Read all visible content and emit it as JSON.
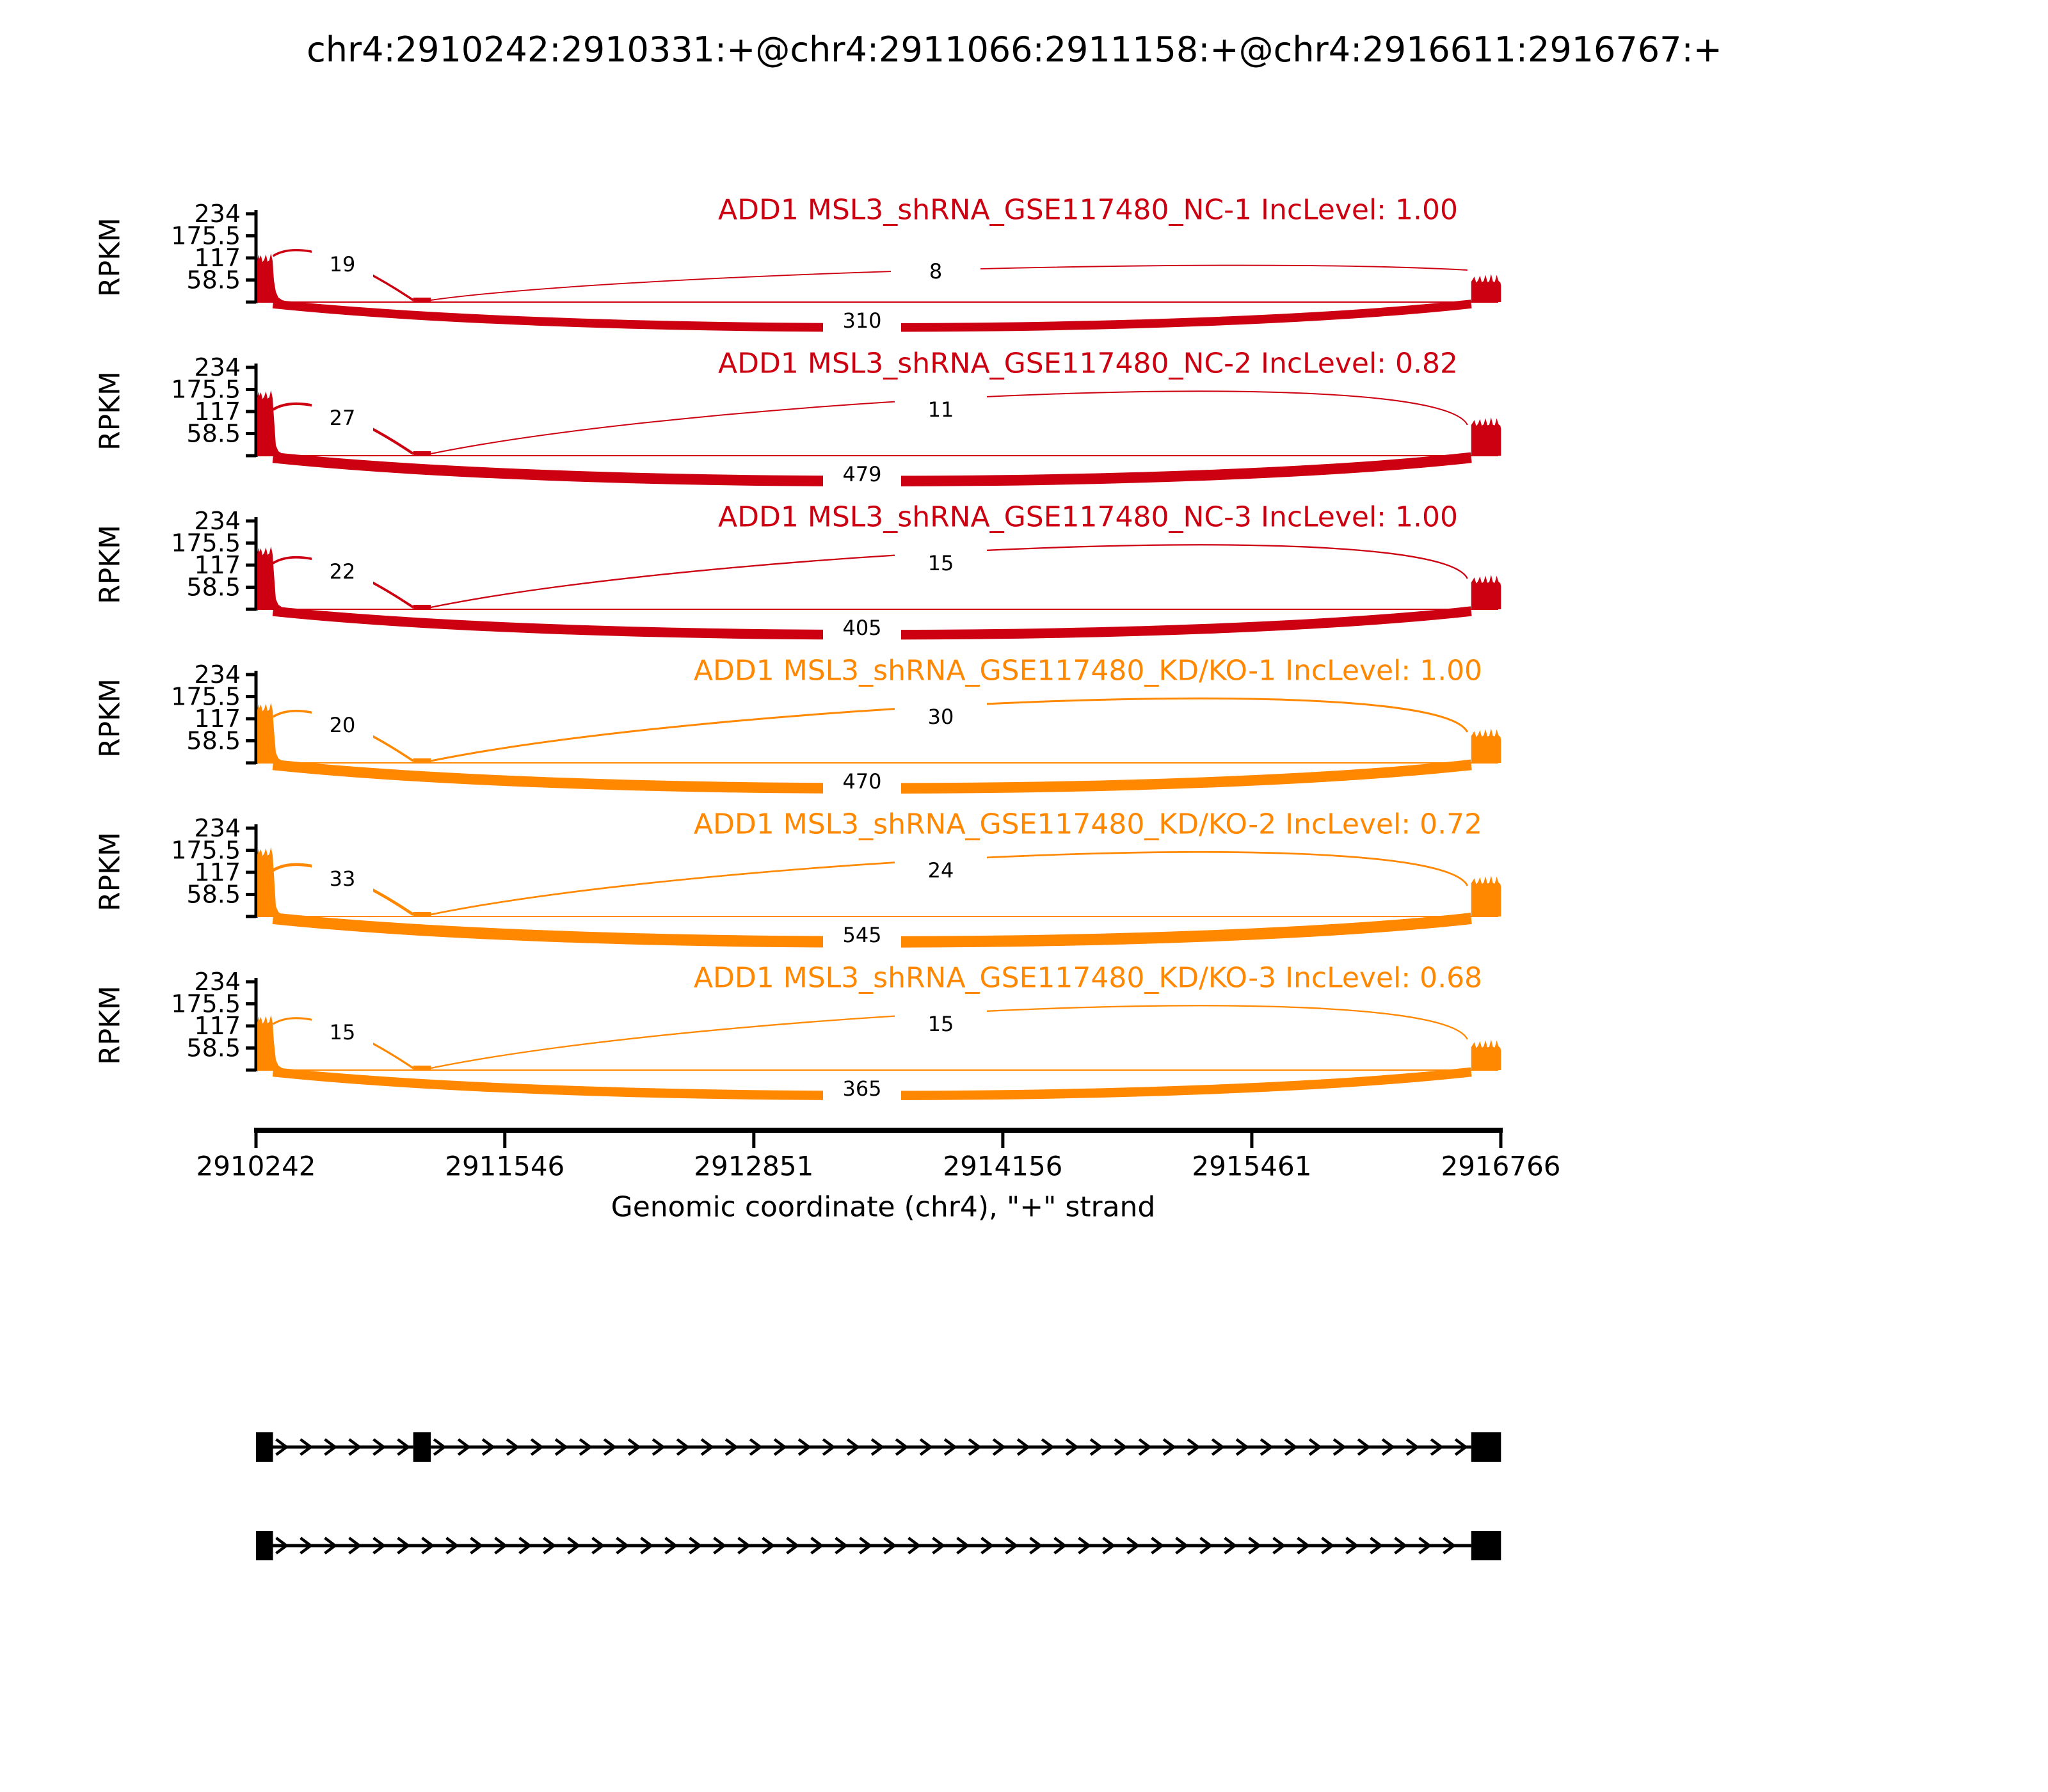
{
  "title": "chr4:2910242:2910331:+@chr4:2911066:2911158:+@chr4:2916611:2916767:+",
  "ylabel": "RPKM",
  "yticks": [
    "234",
    "175.5",
    "117",
    "58.5"
  ],
  "xlabel": "Genomic coordinate (chr4), \"+\" strand",
  "xticks": [
    "2910242",
    "2911546",
    "2912851",
    "2914156",
    "2915461",
    "2916766"
  ],
  "colors": {
    "control": "#CC0011",
    "knockdown": "#FF8800",
    "axis": "#000000",
    "background": "#ffffff"
  },
  "chart_data": {
    "type": "sashimi",
    "title": "chr4:2910242:2910331:+@chr4:2911066:2911158:+@chr4:2916611:2916767:+",
    "xlabel": "Genomic coordinate (chr4), \"+\" strand",
    "ylabel": "RPKM",
    "region": {
      "chrom": "chr4",
      "start": 2910242,
      "end": 2916766,
      "strand": "+"
    },
    "x_ticks": [
      2910242,
      2911546,
      2912851,
      2914156,
      2915461,
      2916766
    ],
    "y_ticks": [
      234,
      175.5,
      117,
      58.5
    ],
    "exons": [
      [
        2910242,
        2910331
      ],
      [
        2911066,
        2911158
      ],
      [
        2916611,
        2916767
      ]
    ],
    "tracks": [
      {
        "label": "ADD1 MSL3_shRNA_GSE117480_NC-1 IncLevel: 1.00",
        "sample": "NC-1",
        "inc_level": 1.0,
        "color": "#CC0011",
        "junction_reads": {
          "exon1_exon2": 19,
          "exon2_exon3": 8,
          "exon1_exon3": 310
        }
      },
      {
        "label": "ADD1 MSL3_shRNA_GSE117480_NC-2 IncLevel: 0.82",
        "sample": "NC-2",
        "inc_level": 0.82,
        "color": "#CC0011",
        "junction_reads": {
          "exon1_exon2": 27,
          "exon2_exon3": 11,
          "exon1_exon3": 479
        }
      },
      {
        "label": "ADD1 MSL3_shRNA_GSE117480_NC-3 IncLevel: 1.00",
        "sample": "NC-3",
        "inc_level": 1.0,
        "color": "#CC0011",
        "junction_reads": {
          "exon1_exon2": 22,
          "exon2_exon3": 15,
          "exon1_exon3": 405
        }
      },
      {
        "label": "ADD1 MSL3_shRNA_GSE117480_KD/KO-1 IncLevel: 1.00",
        "sample": "KD/KO-1",
        "inc_level": 1.0,
        "color": "#FF8800",
        "junction_reads": {
          "exon1_exon2": 20,
          "exon2_exon3": 30,
          "exon1_exon3": 470
        }
      },
      {
        "label": "ADD1 MSL3_shRNA_GSE117480_KD/KO-2 IncLevel: 0.72",
        "sample": "KD/KO-2",
        "inc_level": 0.72,
        "color": "#FF8800",
        "junction_reads": {
          "exon1_exon2": 33,
          "exon2_exon3": 24,
          "exon1_exon3": 545
        }
      },
      {
        "label": "ADD1 MSL3_shRNA_GSE117480_KD/KO-3 IncLevel: 0.68",
        "sample": "KD/KO-3",
        "inc_level": 0.68,
        "color": "#FF8800",
        "junction_reads": {
          "exon1_exon2": 15,
          "exon2_exon3": 15,
          "exon1_exon3": 365
        }
      }
    ],
    "isoforms": [
      {
        "exons": [
          [
            2910242,
            2910331
          ],
          [
            2911066,
            2911158
          ],
          [
            2916611,
            2916767
          ]
        ]
      },
      {
        "exons": [
          [
            2910242,
            2910331
          ],
          [
            2916611,
            2916767
          ]
        ]
      }
    ]
  }
}
